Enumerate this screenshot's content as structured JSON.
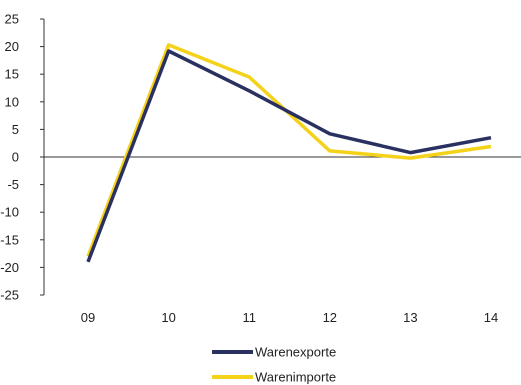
{
  "chart_data": {
    "type": "line",
    "categories": [
      "09",
      "10",
      "11",
      "12",
      "13",
      "14"
    ],
    "series": [
      {
        "name": "Warenexporte",
        "color": "#2a3060",
        "values": [
          -19,
          19.2,
          12,
          4.2,
          0.8,
          3.5
        ]
      },
      {
        "name": "Warenimporte",
        "color": "#f5d21a",
        "values": [
          -18,
          20.3,
          14.5,
          1.1,
          -0.2,
          1.9
        ]
      }
    ],
    "ylim": [
      -25,
      25
    ],
    "yticks": [
      25,
      20,
      15,
      10,
      5,
      0,
      -5,
      -10,
      -15,
      -20,
      -25
    ],
    "ytick_labels": [
      "25",
      "20",
      "15",
      "10",
      "5",
      "0",
      "-5",
      "-10",
      "-15",
      "-20",
      "-25"
    ],
    "legend_position": "bottom",
    "grid": false
  }
}
